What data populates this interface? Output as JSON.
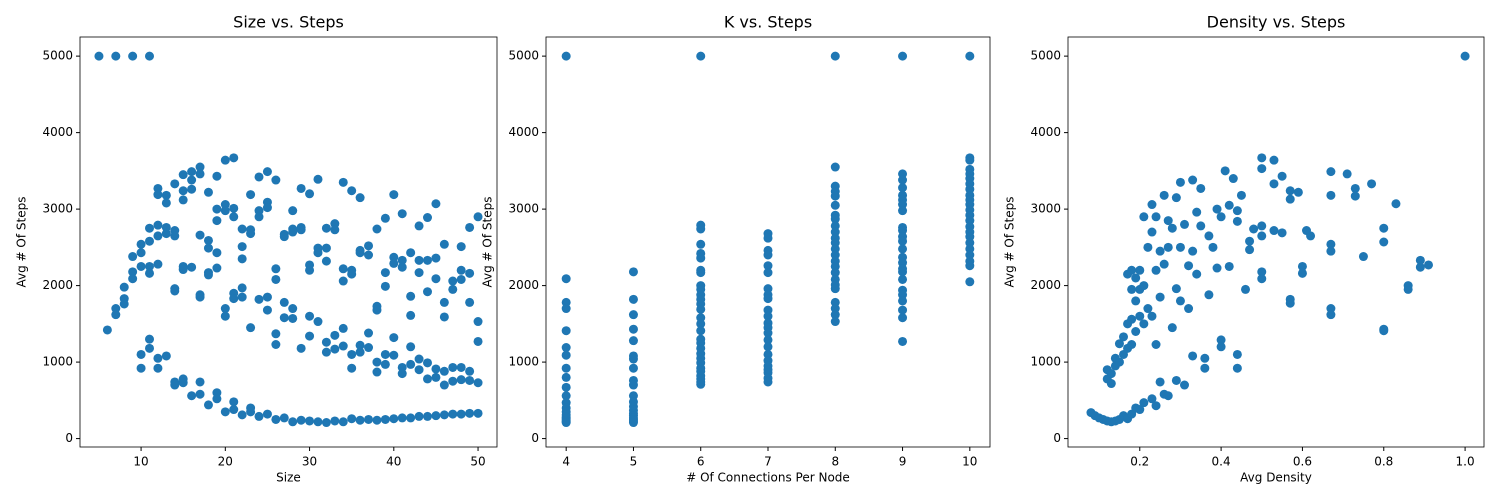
{
  "chart_data": [
    {
      "type": "scatter",
      "title": "Size vs. Steps",
      "xlabel": "Size",
      "ylabel": "Avg # Of Steps",
      "color": "#1f77b4",
      "xlim": [
        2.75,
        52.25
      ],
      "ylim": [
        -110,
        5250
      ],
      "xticks": [
        10,
        20,
        30,
        40,
        50
      ],
      "yticks": [
        0,
        1000,
        2000,
        3000,
        4000,
        5000
      ],
      "x": [
        5,
        6,
        7,
        7,
        7,
        8,
        8,
        8,
        9,
        9,
        9,
        9,
        10,
        10,
        10,
        10,
        10,
        11,
        11,
        11,
        11,
        11,
        11,
        11,
        12,
        12,
        12,
        12,
        12,
        12,
        12,
        13,
        13,
        13,
        13,
        13,
        14,
        14,
        14,
        14,
        14,
        14,
        14,
        15,
        15,
        15,
        15,
        15,
        15,
        15,
        16,
        16,
        16,
        16,
        16,
        17,
        17,
        17,
        17,
        17,
        17,
        17,
        18,
        18,
        18,
        18,
        18,
        18,
        19,
        19,
        19,
        19,
        19,
        19,
        19,
        20,
        20,
        20,
        20,
        20,
        20,
        21,
        21,
        21,
        21,
        21,
        21,
        21,
        22,
        22,
        22,
        22,
        22,
        22,
        23,
        23,
        23,
        23,
        23,
        23,
        24,
        24,
        24,
        24,
        24,
        25,
        25,
        25,
        25,
        25,
        25,
        26,
        26,
        26,
        26,
        26,
        26,
        27,
        27,
        27,
        27,
        27,
        28,
        28,
        28,
        28,
        28,
        28,
        29,
        29,
        29,
        29,
        29,
        30,
        30,
        30,
        30,
        30,
        30,
        31,
        31,
        31,
        31,
        31,
        32,
        32,
        32,
        32,
        32,
        32,
        33,
        33,
        33,
        33,
        33,
        34,
        34,
        34,
        34,
        34,
        34,
        35,
        35,
        35,
        35,
        35,
        35,
        36,
        36,
        36,
        36,
        36,
        36,
        37,
        37,
        37,
        37,
        37,
        38,
        38,
        38,
        38,
        38,
        38,
        39,
        39,
        39,
        39,
        39,
        39,
        40,
        40,
        40,
        40,
        40,
        40,
        41,
        41,
        41,
        41,
        41,
        41,
        42,
        42,
        42,
        42,
        42,
        42,
        43,
        43,
        43,
        43,
        43,
        43,
        44,
        44,
        44,
        44,
        44,
        44,
        45,
        45,
        45,
        45,
        45,
        45,
        46,
        46,
        46,
        46,
        46,
        46,
        47,
        47,
        47,
        47,
        47,
        48,
        48,
        48,
        48,
        48,
        48,
        49,
        49,
        49,
        49,
        49,
        49,
        50,
        50,
        50,
        50,
        50
      ],
      "values": [
        5000,
        1420,
        5000,
        1700,
        1620,
        1980,
        1830,
        1760,
        5000,
        2380,
        2180,
        2090,
        2540,
        2430,
        2250,
        1100,
        920,
        5000,
        2750,
        2580,
        2250,
        2160,
        1300,
        1180,
        3270,
        3190,
        2790,
        2650,
        2280,
        1050,
        920,
        3180,
        3080,
        2760,
        2680,
        1080,
        3330,
        2720,
        2650,
        1960,
        1930,
        740,
        700,
        3450,
        3240,
        3120,
        2250,
        2210,
        780,
        730,
        3490,
        3380,
        3260,
        2240,
        560,
        3550,
        3460,
        2660,
        1880,
        1850,
        740,
        580,
        3220,
        2590,
        2490,
        2170,
        2140,
        440,
        3430,
        3000,
        2850,
        2430,
        2230,
        600,
        520,
        3640,
        3060,
        2980,
        1700,
        1600,
        350,
        3670,
        3010,
        2900,
        1900,
        1830,
        480,
        380,
        2740,
        2510,
        2350,
        1970,
        1850,
        310,
        3190,
        2730,
        2680,
        1450,
        400,
        350,
        3420,
        2980,
        2900,
        1820,
        290,
        3490,
        3090,
        3020,
        1850,
        1680,
        320,
        3380,
        2220,
        2080,
        1370,
        1230,
        250,
        2670,
        2640,
        1780,
        1580,
        270,
        2980,
        2740,
        2700,
        1700,
        1570,
        220,
        3270,
        2760,
        2730,
        1180,
        240,
        3200,
        2270,
        2200,
        1600,
        1340,
        230,
        3390,
        2490,
        2430,
        1530,
        220,
        2750,
        2490,
        2320,
        1260,
        1130,
        210,
        2810,
        2730,
        1350,
        1170,
        230,
        3350,
        2220,
        2060,
        1440,
        1210,
        220,
        3240,
        2200,
        2150,
        1100,
        920,
        260,
        3150,
        2460,
        2430,
        1220,
        1130,
        240,
        2520,
        2400,
        1380,
        1190,
        250,
        2740,
        1730,
        1680,
        1000,
        870,
        240,
        2880,
        2170,
        1990,
        1100,
        970,
        250,
        3190,
        2370,
        2290,
        1320,
        1090,
        260,
        2940,
        2330,
        2240,
        930,
        850,
        270,
        2430,
        1860,
        1610,
        1200,
        970,
        270,
        2780,
        2330,
        2170,
        1040,
        900,
        290,
        2890,
        2330,
        1920,
        990,
        780,
        290,
        3070,
        2360,
        2090,
        910,
        800,
        300,
        2540,
        1780,
        1590,
        880,
        700,
        310,
        2060,
        1950,
        930,
        750,
        320,
        2510,
        2200,
        2080,
        930,
        770,
        320,
        2760,
        2160,
        1780,
        880,
        760,
        330,
        2900,
        1530,
        1270,
        730,
        330
      ]
    },
    {
      "type": "scatter",
      "title": "K vs. Steps",
      "xlabel": "# Of Connections Per Node",
      "ylabel": "Avg # Of Steps",
      "color": "#1f77b4",
      "xlim": [
        3.7,
        10.3
      ],
      "ylim": [
        -110,
        5250
      ],
      "xticks": [
        4,
        5,
        6,
        7,
        8,
        9,
        10
      ],
      "yticks": [
        0,
        1000,
        2000,
        3000,
        4000,
        5000
      ],
      "x": [
        4,
        4,
        4,
        4,
        4,
        4,
        4,
        4,
        4,
        4,
        4,
        4,
        4,
        4,
        4,
        4,
        4,
        4,
        4,
        4,
        5,
        5,
        5,
        5,
        5,
        5,
        5,
        5,
        5,
        5,
        5,
        5,
        5,
        5,
        5,
        5,
        5,
        5,
        5,
        5,
        6,
        6,
        6,
        6,
        6,
        6,
        6,
        6,
        6,
        6,
        6,
        6,
        6,
        6,
        6,
        6,
        6,
        6,
        6,
        6,
        6,
        6,
        6,
        6,
        6,
        6,
        6,
        6,
        6,
        7,
        7,
        7,
        7,
        7,
        7,
        7,
        7,
        7,
        7,
        7,
        7,
        7,
        7,
        7,
        7,
        7,
        7,
        7,
        7,
        7,
        7,
        7,
        8,
        8,
        8,
        8,
        8,
        8,
        8,
        8,
        8,
        8,
        8,
        8,
        8,
        8,
        8,
        8,
        8,
        8,
        8,
        8,
        8,
        8,
        8,
        8,
        9,
        9,
        9,
        9,
        9,
        9,
        9,
        9,
        9,
        9,
        9,
        9,
        9,
        9,
        9,
        9,
        9,
        9,
        9,
        9,
        9,
        9,
        9,
        9,
        10,
        10,
        10,
        10,
        10,
        10,
        10,
        10,
        10,
        10,
        10,
        10,
        10,
        10,
        10,
        10,
        10,
        10,
        10,
        10,
        10,
        10,
        10
      ],
      "values": [
        5000,
        2090,
        1780,
        1700,
        1410,
        1190,
        1090,
        920,
        800,
        670,
        560,
        470,
        400,
        350,
        310,
        280,
        260,
        240,
        220,
        210,
        2180,
        1820,
        1620,
        1430,
        1280,
        1080,
        1040,
        920,
        760,
        700,
        560,
        480,
        420,
        370,
        330,
        300,
        270,
        250,
        230,
        210,
        5000,
        2790,
        2740,
        2540,
        2420,
        2360,
        2200,
        2170,
        2000,
        1950,
        1880,
        1820,
        1760,
        1690,
        1580,
        1500,
        1410,
        1300,
        1250,
        1180,
        1110,
        1050,
        990,
        920,
        880,
        820,
        780,
        740,
        710,
        2680,
        2620,
        2460,
        2400,
        2260,
        2170,
        1960,
        1880,
        1830,
        1680,
        1600,
        1510,
        1450,
        1380,
        1290,
        1200,
        1100,
        1020,
        950,
        900,
        860,
        790,
        740,
        5000,
        3550,
        3300,
        3230,
        3170,
        3050,
        2920,
        2870,
        2780,
        2700,
        2620,
        2560,
        2480,
        2400,
        2320,
        2250,
        2170,
        2080,
        2010,
        1960,
        1780,
        1700,
        1620,
        1530,
        5000,
        3460,
        3380,
        3280,
        3180,
        3120,
        3060,
        2980,
        2760,
        2720,
        2640,
        2580,
        2480,
        2370,
        2300,
        2220,
        2180,
        2080,
        1940,
        1880,
        1800,
        1680,
        1580,
        1270,
        5000,
        3670,
        3640,
        3520,
        3460,
        3400,
        3330,
        3260,
        3180,
        3120,
        3060,
        2990,
        2920,
        2850,
        2770,
        2700,
        2640,
        2560,
        2480,
        2400,
        2320,
        2260,
        2050
      ]
    },
    {
      "type": "scatter",
      "title": "Density vs. Steps",
      "xlabel": "Avg Density",
      "ylabel": "Avg # Of Steps",
      "color": "#1f77b4",
      "xlim": [
        0.0235,
        1.0465
      ],
      "ylim": [
        -110,
        5250
      ],
      "xticks": [
        0.2,
        0.4,
        0.6,
        0.8,
        {
          "value": 1,
          "label": "1.0"
        }
      ],
      "yticks": [
        0,
        1000,
        2000,
        3000,
        4000,
        5000
      ],
      "x": [
        1.0,
        0.08,
        0.09,
        0.1,
        0.11,
        0.12,
        0.13,
        0.14,
        0.15,
        0.16,
        0.17,
        0.18,
        0.19,
        0.2,
        0.21,
        0.23,
        0.24,
        0.25,
        0.26,
        0.27,
        0.29,
        0.31,
        0.33,
        0.36,
        0.36,
        0.4,
        0.4,
        0.44,
        0.44,
        0.12,
        0.12,
        0.13,
        0.13,
        0.14,
        0.14,
        0.15,
        0.15,
        0.16,
        0.16,
        0.17,
        0.17,
        0.17,
        0.18,
        0.18,
        0.18,
        0.18,
        0.19,
        0.19,
        0.19,
        0.2,
        0.2,
        0.2,
        0.21,
        0.21,
        0.21,
        0.22,
        0.22,
        0.23,
        0.23,
        0.23,
        0.24,
        0.24,
        0.24,
        0.25,
        0.25,
        0.26,
        0.26,
        0.27,
        0.27,
        0.28,
        0.28,
        0.29,
        0.29,
        0.3,
        0.3,
        0.3,
        0.31,
        0.32,
        0.32,
        0.33,
        0.33,
        0.34,
        0.34,
        0.35,
        0.35,
        0.37,
        0.37,
        0.38,
        0.39,
        0.39,
        0.4,
        0.41,
        0.42,
        0.42,
        0.43,
        0.44,
        0.44,
        0.45,
        0.46,
        0.47,
        0.47,
        0.48,
        0.5,
        0.5,
        0.5,
        0.5,
        0.5,
        0.5,
        0.53,
        0.53,
        0.53,
        0.55,
        0.55,
        0.57,
        0.57,
        0.57,
        0.57,
        0.59,
        0.6,
        0.6,
        0.61,
        0.62,
        0.67,
        0.67,
        0.67,
        0.67,
        0.67,
        0.67,
        0.71,
        0.73,
        0.73,
        0.75,
        0.77,
        0.8,
        0.8,
        0.8,
        0.8,
        0.83,
        0.86,
        0.86,
        0.89,
        0.89,
        0.91
      ],
      "values": [
        5000,
        340,
        300,
        270,
        250,
        230,
        220,
        230,
        250,
        300,
        260,
        320,
        400,
        380,
        470,
        520,
        430,
        740,
        580,
        560,
        760,
        700,
        1080,
        1050,
        920,
        1290,
        1200,
        1100,
        920,
        780,
        900,
        720,
        850,
        950,
        1050,
        1000,
        1240,
        1100,
        1330,
        1180,
        1500,
        2150,
        1230,
        1560,
        1950,
        2200,
        1400,
        1800,
        2100,
        1600,
        1950,
        2200,
        1500,
        2000,
        2900,
        1700,
        2500,
        1600,
        2700,
        3060,
        1230,
        2200,
        2900,
        1850,
        2450,
        3180,
        2280,
        2500,
        2850,
        1450,
        2750,
        1960,
        3150,
        1800,
        2500,
        3350,
        2800,
        2260,
        1700,
        3380,
        2450,
        2150,
        2960,
        3270,
        2780,
        1880,
        2650,
        2500,
        2230,
        3000,
        2900,
        3500,
        3050,
        2250,
        3400,
        2980,
        2840,
        3180,
        1950,
        2580,
        2470,
        2740,
        3670,
        3530,
        2780,
        2650,
        2180,
        2090,
        3640,
        3330,
        2720,
        3430,
        2690,
        3240,
        3130,
        1820,
        1770,
        3220,
        2250,
        2160,
        2720,
        2650,
        3490,
        3180,
        2540,
        2450,
        1700,
        1620,
        3460,
        3270,
        3170,
        2380,
        3330,
        2750,
        2570,
        1430,
        1410,
        3070,
        2000,
        1950,
        2330,
        2240,
        2270
      ]
    }
  ]
}
